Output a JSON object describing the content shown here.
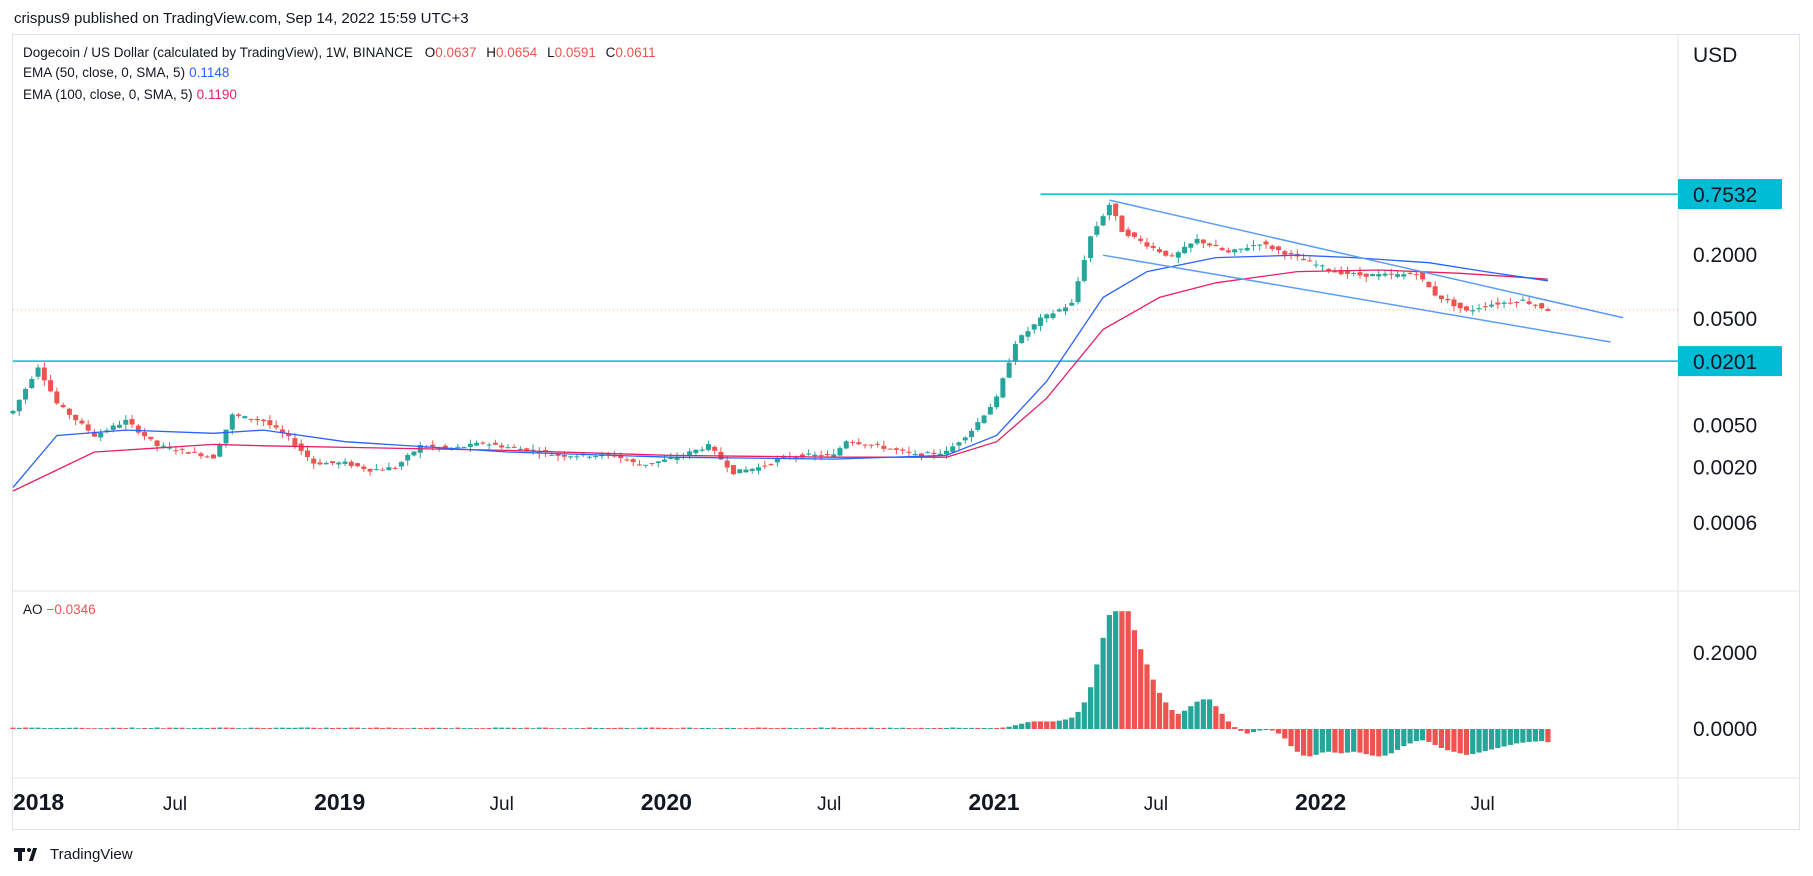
{
  "publisher": "crispus9 published on TradingView.com, Sep 14, 2022 15:59 UTC+3",
  "footer_brand": "TradingView",
  "legend": {
    "symbol": "Dogecoin / US Dollar (calculated by TradingView), 1W, BINANCE",
    "o_label": "O",
    "o": "0.0637",
    "h_label": "H",
    "h": "0.0654",
    "l_label": "L",
    "l": "0.0591",
    "c_label": "C",
    "c": "0.0611",
    "ema50_label": "EMA (50, close, 0, SMA, 5)",
    "ema50_value": "0.1148",
    "ema100_label": "EMA (100, close, 0, SMA, 5)",
    "ema100_value": "0.1190",
    "ao_label": "AO",
    "ao_value": "−0.0346"
  },
  "colors": {
    "up": "#26a69a",
    "down": "#ef5350",
    "ao_up": "#26a69a",
    "ao_down": "#ef5350",
    "ema50": "#2962ff",
    "ema100": "#e91e63",
    "trendline": "#5b9cf6",
    "level": "#00bcd4",
    "level_badge": "#00bcd4",
    "price_line": "#f7a072"
  },
  "chart_data": {
    "type": "candlestick",
    "title": "Dogecoin / US Dollar (calculated by TradingView), 1W, BINANCE",
    "currency_label": "USD",
    "y_scale": "log",
    "y_ticks": [
      "0.2000",
      "0.0500",
      "0.0050",
      "0.0020",
      "0.0006"
    ],
    "x_ticks": [
      "2018",
      "Jul",
      "2019",
      "Jul",
      "2020",
      "Jul",
      "2021",
      "Jul",
      "2022",
      "Jul"
    ],
    "horizontal_levels": [
      {
        "label": "0.7532",
        "value": 0.7532
      },
      {
        "label": "0.0201",
        "value": 0.0201
      }
    ],
    "last_price": 0.0611,
    "price_path": [
      [
        "2018-01-01",
        0.0068
      ],
      [
        "2018-01-29",
        0.018
      ],
      [
        "2018-02-19",
        0.008
      ],
      [
        "2018-04-02",
        0.004
      ],
      [
        "2018-05-07",
        0.0055
      ],
      [
        "2018-06-11",
        0.0032
      ],
      [
        "2018-07-16",
        0.0028
      ],
      [
        "2018-08-13",
        0.0025
      ],
      [
        "2018-09-03",
        0.0062
      ],
      [
        "2018-10-08",
        0.0055
      ],
      [
        "2018-11-05",
        0.0038
      ],
      [
        "2018-12-03",
        0.0022
      ],
      [
        "2019-01-07",
        0.0022
      ],
      [
        "2019-02-04",
        0.0019
      ],
      [
        "2019-03-04",
        0.002
      ],
      [
        "2019-04-01",
        0.0032
      ],
      [
        "2019-05-06",
        0.003
      ],
      [
        "2019-06-10",
        0.0034
      ],
      [
        "2019-07-08",
        0.0031
      ],
      [
        "2019-08-05",
        0.0029
      ],
      [
        "2019-09-02",
        0.0026
      ],
      [
        "2019-10-07",
        0.0026
      ],
      [
        "2019-11-04",
        0.0026
      ],
      [
        "2019-12-02",
        0.0021
      ],
      [
        "2020-01-06",
        0.0024
      ],
      [
        "2020-02-17",
        0.0032
      ],
      [
        "2020-03-16",
        0.0018
      ],
      [
        "2020-04-13",
        0.002
      ],
      [
        "2020-05-11",
        0.0025
      ],
      [
        "2020-06-08",
        0.0026
      ],
      [
        "2020-07-06",
        0.0026
      ],
      [
        "2020-07-20",
        0.0036
      ],
      [
        "2020-09-07",
        0.003
      ],
      [
        "2020-10-05",
        0.0026
      ],
      [
        "2020-11-09",
        0.0028
      ],
      [
        "2020-12-07",
        0.0045
      ],
      [
        "2021-01-04",
        0.009
      ],
      [
        "2021-01-25",
        0.03
      ],
      [
        "2021-02-22",
        0.05
      ],
      [
        "2021-03-29",
        0.07
      ],
      [
        "2021-04-19",
        0.3
      ],
      [
        "2021-05-10",
        0.6
      ],
      [
        "2021-05-24",
        0.34
      ],
      [
        "2021-06-21",
        0.25
      ],
      [
        "2021-07-19",
        0.19
      ],
      [
        "2021-08-16",
        0.28
      ],
      [
        "2021-09-20",
        0.21
      ],
      [
        "2021-10-25",
        0.26
      ],
      [
        "2021-11-22",
        0.21
      ],
      [
        "2021-12-20",
        0.17
      ],
      [
        "2022-01-17",
        0.14
      ],
      [
        "2022-02-14",
        0.13
      ],
      [
        "2022-03-28",
        0.13
      ],
      [
        "2022-04-18",
        0.135
      ],
      [
        "2022-05-09",
        0.085
      ],
      [
        "2022-06-13",
        0.059
      ],
      [
        "2022-07-04",
        0.068
      ],
      [
        "2022-08-15",
        0.075
      ],
      [
        "2022-09-12",
        0.0611
      ]
    ],
    "ema50_path": [
      [
        "2018-01-01",
        0.0013
      ],
      [
        "2018-02-19",
        0.004
      ],
      [
        "2018-05-07",
        0.0045
      ],
      [
        "2018-08-13",
        0.0042
      ],
      [
        "2018-10-08",
        0.0045
      ],
      [
        "2019-01-07",
        0.0035
      ],
      [
        "2019-07-08",
        0.0028
      ],
      [
        "2020-01-06",
        0.0025
      ],
      [
        "2020-07-06",
        0.0024
      ],
      [
        "2020-11-09",
        0.0026
      ],
      [
        "2021-01-04",
        0.004
      ],
      [
        "2021-03-01",
        0.013
      ],
      [
        "2021-05-03",
        0.08
      ],
      [
        "2021-06-21",
        0.14
      ],
      [
        "2021-09-06",
        0.19
      ],
      [
        "2021-12-06",
        0.2
      ],
      [
        "2022-02-07",
        0.19
      ],
      [
        "2022-05-02",
        0.17
      ],
      [
        "2022-07-04",
        0.14
      ],
      [
        "2022-09-12",
        0.1148
      ]
    ],
    "ema100_path": [
      [
        "2018-01-01",
        0.0012
      ],
      [
        "2018-04-02",
        0.0028
      ],
      [
        "2018-08-13",
        0.0033
      ],
      [
        "2018-10-08",
        0.0032
      ],
      [
        "2019-07-08",
        0.0029
      ],
      [
        "2020-01-06",
        0.0026
      ],
      [
        "2020-07-06",
        0.0025
      ],
      [
        "2020-11-09",
        0.0025
      ],
      [
        "2021-01-04",
        0.0035
      ],
      [
        "2021-03-01",
        0.009
      ],
      [
        "2021-05-03",
        0.04
      ],
      [
        "2021-07-05",
        0.08
      ],
      [
        "2021-09-06",
        0.11
      ],
      [
        "2021-12-06",
        0.14
      ],
      [
        "2022-03-07",
        0.145
      ],
      [
        "2022-06-06",
        0.135
      ],
      [
        "2022-09-12",
        0.119
      ]
    ],
    "trendlines": [
      {
        "from": [
          "2021-05-10",
          0.66
        ],
        "to": [
          "2022-12-05",
          0.0515
        ]
      },
      {
        "from": [
          "2021-05-03",
          0.2
        ],
        "to": [
          "2022-11-21",
          0.0304
        ]
      }
    ],
    "ao": {
      "label": "AO",
      "last": -0.0346,
      "y_ticks": [
        "0.2000",
        "0.0000"
      ],
      "bars": [
        [
          "2021-01-18",
          0.006,
          "up"
        ],
        [
          "2021-01-25",
          0.01,
          "up"
        ],
        [
          "2021-02-01",
          0.014,
          "up"
        ],
        [
          "2021-02-08",
          0.018,
          "up"
        ],
        [
          "2021-02-15",
          0.02,
          "down"
        ],
        [
          "2021-02-22",
          0.02,
          "down"
        ],
        [
          "2021-03-01",
          0.02,
          "down"
        ],
        [
          "2021-03-08",
          0.02,
          "down"
        ],
        [
          "2021-03-15",
          0.022,
          "up"
        ],
        [
          "2021-03-22",
          0.025,
          "up"
        ],
        [
          "2021-03-29",
          0.03,
          "up"
        ],
        [
          "2021-04-05",
          0.045,
          "up"
        ],
        [
          "2021-04-12",
          0.07,
          "up"
        ],
        [
          "2021-04-19",
          0.11,
          "up"
        ],
        [
          "2021-04-26",
          0.17,
          "up"
        ],
        [
          "2021-05-03",
          0.24,
          "up"
        ],
        [
          "2021-05-10",
          0.3,
          "up"
        ],
        [
          "2021-05-17",
          0.31,
          "up"
        ],
        [
          "2021-05-24",
          0.31,
          "down"
        ],
        [
          "2021-05-31",
          0.31,
          "down"
        ],
        [
          "2021-06-07",
          0.26,
          "down"
        ],
        [
          "2021-06-14",
          0.21,
          "down"
        ],
        [
          "2021-06-21",
          0.17,
          "down"
        ],
        [
          "2021-06-28",
          0.13,
          "down"
        ],
        [
          "2021-07-05",
          0.095,
          "down"
        ],
        [
          "2021-07-12",
          0.07,
          "down"
        ],
        [
          "2021-07-19",
          0.05,
          "down"
        ],
        [
          "2021-07-26",
          0.04,
          "down"
        ],
        [
          "2021-08-02",
          0.048,
          "up"
        ],
        [
          "2021-08-09",
          0.06,
          "up"
        ],
        [
          "2021-08-16",
          0.072,
          "up"
        ],
        [
          "2021-08-23",
          0.078,
          "up"
        ],
        [
          "2021-08-30",
          0.078,
          "up"
        ],
        [
          "2021-09-06",
          0.06,
          "down"
        ],
        [
          "2021-09-13",
          0.04,
          "down"
        ],
        [
          "2021-09-20",
          0.02,
          "down"
        ],
        [
          "2021-09-27",
          0.005,
          "down"
        ],
        [
          "2021-10-04",
          -0.005,
          "down"
        ],
        [
          "2021-10-11",
          -0.012,
          "down"
        ],
        [
          "2021-10-18",
          -0.008,
          "up"
        ],
        [
          "2021-10-25",
          -0.004,
          "up"
        ],
        [
          "2021-11-01",
          0.0,
          "up"
        ],
        [
          "2021-11-08",
          -0.004,
          "down"
        ],
        [
          "2021-11-15",
          -0.012,
          "down"
        ],
        [
          "2021-11-22",
          -0.025,
          "down"
        ],
        [
          "2021-11-29",
          -0.045,
          "down"
        ],
        [
          "2021-12-06",
          -0.06,
          "down"
        ],
        [
          "2021-12-13",
          -0.07,
          "down"
        ],
        [
          "2021-12-20",
          -0.072,
          "down"
        ],
        [
          "2021-12-27",
          -0.068,
          "up"
        ],
        [
          "2022-01-03",
          -0.062,
          "up"
        ],
        [
          "2022-01-10",
          -0.06,
          "up"
        ],
        [
          "2022-01-17",
          -0.062,
          "down"
        ],
        [
          "2022-01-24",
          -0.064,
          "down"
        ],
        [
          "2022-01-31",
          -0.062,
          "up"
        ],
        [
          "2022-02-07",
          -0.06,
          "up"
        ],
        [
          "2022-02-14",
          -0.062,
          "down"
        ],
        [
          "2022-02-21",
          -0.066,
          "down"
        ],
        [
          "2022-02-28",
          -0.07,
          "down"
        ],
        [
          "2022-03-07",
          -0.072,
          "down"
        ],
        [
          "2022-03-14",
          -0.07,
          "up"
        ],
        [
          "2022-03-21",
          -0.064,
          "up"
        ],
        [
          "2022-03-28",
          -0.055,
          "up"
        ],
        [
          "2022-04-04",
          -0.045,
          "up"
        ],
        [
          "2022-04-11",
          -0.038,
          "up"
        ],
        [
          "2022-04-18",
          -0.032,
          "up"
        ],
        [
          "2022-04-25",
          -0.03,
          "up"
        ],
        [
          "2022-05-02",
          -0.034,
          "down"
        ],
        [
          "2022-05-09",
          -0.042,
          "down"
        ],
        [
          "2022-05-16",
          -0.05,
          "down"
        ],
        [
          "2022-05-23",
          -0.056,
          "down"
        ],
        [
          "2022-05-30",
          -0.06,
          "down"
        ],
        [
          "2022-06-06",
          -0.064,
          "down"
        ],
        [
          "2022-06-13",
          -0.068,
          "down"
        ],
        [
          "2022-06-20",
          -0.066,
          "up"
        ],
        [
          "2022-06-27",
          -0.062,
          "up"
        ],
        [
          "2022-07-04",
          -0.058,
          "up"
        ],
        [
          "2022-07-11",
          -0.054,
          "up"
        ],
        [
          "2022-07-18",
          -0.05,
          "up"
        ],
        [
          "2022-07-25",
          -0.046,
          "up"
        ],
        [
          "2022-08-01",
          -0.042,
          "up"
        ],
        [
          "2022-08-08",
          -0.038,
          "up"
        ],
        [
          "2022-08-15",
          -0.036,
          "up"
        ],
        [
          "2022-08-22",
          -0.034,
          "up"
        ],
        [
          "2022-08-29",
          -0.033,
          "up"
        ],
        [
          "2022-09-05",
          -0.032,
          "up"
        ],
        [
          "2022-09-12",
          -0.0346,
          "down"
        ]
      ]
    }
  }
}
